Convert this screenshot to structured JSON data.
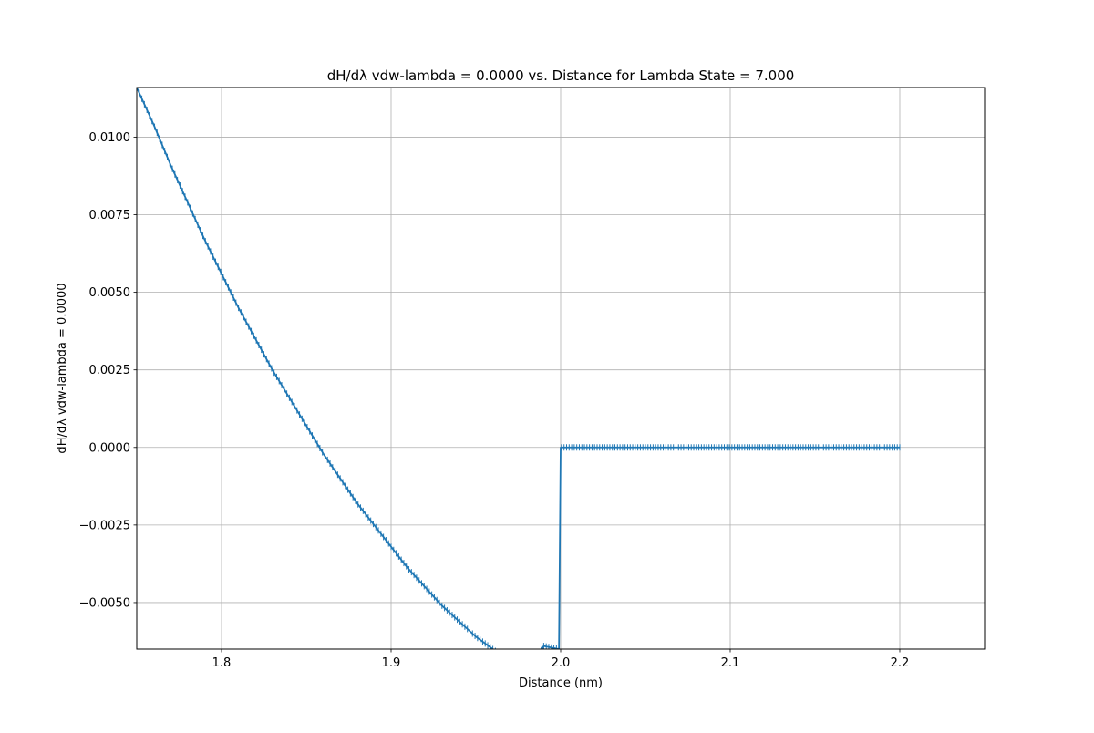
{
  "chart_data": {
    "type": "line",
    "title": "dH/dλ vdw-lambda = 0.0000 vs. Distance for Lambda State = 7.000",
    "xlabel": "Distance (nm)",
    "ylabel": "dH/dλ vdw-lambda = 0.0000",
    "xlim": [
      1.75,
      2.25
    ],
    "ylim": [
      -0.0065,
      0.0116
    ],
    "xticks": [
      1.8,
      1.9,
      2.0,
      2.1,
      2.2
    ],
    "xtick_labels": [
      "1.8",
      "1.9",
      "2.0",
      "2.1",
      "2.2"
    ],
    "yticks": [
      -0.005,
      -0.0025,
      0.0,
      0.0025,
      0.005,
      0.0075,
      0.01
    ],
    "ytick_labels": [
      "−0.0050",
      "−0.0025",
      "0.0000",
      "0.0025",
      "0.0050",
      "0.0075",
      "0.0100"
    ],
    "grid": true,
    "line_color": "#1f77b4",
    "marker": "|",
    "series": [
      {
        "x": [
          1.75,
          1.76,
          1.77,
          1.78,
          1.79,
          1.8,
          1.81,
          1.82,
          1.83,
          1.84,
          1.85,
          1.86,
          1.87,
          1.88,
          1.89,
          1.9,
          1.91,
          1.92,
          1.93,
          1.94,
          1.95,
          1.96,
          1.97,
          1.98,
          1.99,
          1.999,
          2.0,
          2.01,
          2.02,
          2.03,
          2.04,
          2.05,
          2.06,
          2.07,
          2.08,
          2.09,
          2.1,
          2.11,
          2.12,
          2.13,
          2.14,
          2.15,
          2.16,
          2.17,
          2.18,
          2.19,
          2.2
        ],
        "y": [
          0.0116,
          0.0104,
          0.0091,
          0.0079,
          0.0067,
          0.0056,
          0.0045,
          0.0035,
          0.0025,
          0.0016,
          0.0007,
          -0.0002,
          -0.001,
          -0.0018,
          -0.0025,
          -0.0032,
          -0.0039,
          -0.0045,
          -0.0051,
          -0.0056,
          -0.0061,
          -0.0065,
          -0.0069,
          -0.0073,
          -0.0064,
          -0.0065,
          0.0,
          0.0,
          0.0,
          0.0,
          0.0,
          0.0,
          0.0,
          0.0,
          0.0,
          0.0,
          0.0,
          0.0,
          0.0,
          0.0,
          0.0,
          0.0,
          0.0,
          0.0,
          0.0,
          0.0,
          0.0
        ]
      }
    ]
  }
}
